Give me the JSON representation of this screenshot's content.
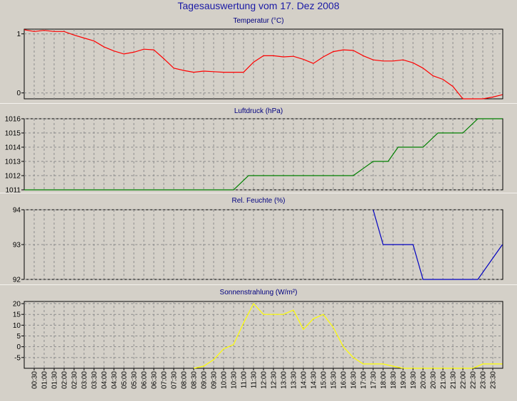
{
  "title": "Tagesauswertung vom 17. Dez 2008",
  "time_labels": [
    "00:30",
    "01:00",
    "01:30",
    "02:00",
    "02:30",
    "03:00",
    "03:30",
    "04:00",
    "04:30",
    "05:00",
    "05:30",
    "06:00",
    "06:30",
    "07:00",
    "07:30",
    "08:00",
    "08:30",
    "09:00",
    "09:30",
    "10:00",
    "10:30",
    "11:00",
    "11:30",
    "12:00",
    "12:30",
    "13:00",
    "13:30",
    "14:00",
    "14:30",
    "15:00",
    "15:30",
    "16:00",
    "16:30",
    "17:00",
    "17:30",
    "18:00",
    "18:30",
    "19:00",
    "19:30",
    "20:00",
    "20:30",
    "21:00",
    "21:30",
    "22:00",
    "22:30",
    "23:00",
    "23:30"
  ],
  "colors": {
    "background": "#d4d0c8",
    "title": "#1a1aa6",
    "panel_title": "#000080",
    "grid": "#8c8c8c"
  },
  "chart_data": [
    {
      "type": "line",
      "title": "Temperatur (°C)",
      "color": "#ff0000",
      "ylim": [
        -0.1,
        1.08
      ],
      "yticks": [
        0,
        1
      ],
      "ytick_labels": [
        "0",
        "1"
      ],
      "grid": true,
      "points": [
        [
          "00:00",
          1.07
        ],
        [
          "00:30",
          1.04
        ],
        [
          "01:00",
          1.06
        ],
        [
          "01:30",
          1.04
        ],
        [
          "02:00",
          1.04
        ],
        [
          "02:30",
          0.98
        ],
        [
          "03:00",
          0.93
        ],
        [
          "03:30",
          0.88
        ],
        [
          "04:00",
          0.78
        ],
        [
          "04:30",
          0.71
        ],
        [
          "05:00",
          0.66
        ],
        [
          "05:30",
          0.69
        ],
        [
          "06:00",
          0.74
        ],
        [
          "06:30",
          0.73
        ],
        [
          "07:00",
          0.58
        ],
        [
          "07:30",
          0.42
        ],
        [
          "08:00",
          0.38
        ],
        [
          "08:30",
          0.35
        ],
        [
          "09:00",
          0.37
        ],
        [
          "09:30",
          0.36
        ],
        [
          "10:00",
          0.35
        ],
        [
          "10:30",
          0.35
        ],
        [
          "11:00",
          0.35
        ],
        [
          "11:30",
          0.52
        ],
        [
          "12:00",
          0.63
        ],
        [
          "12:30",
          0.63
        ],
        [
          "13:00",
          0.61
        ],
        [
          "13:30",
          0.62
        ],
        [
          "14:00",
          0.57
        ],
        [
          "14:30",
          0.5
        ],
        [
          "15:00",
          0.61
        ],
        [
          "15:30",
          0.7
        ],
        [
          "16:00",
          0.73
        ],
        [
          "16:30",
          0.72
        ],
        [
          "17:00",
          0.63
        ],
        [
          "17:30",
          0.56
        ],
        [
          "18:00",
          0.54
        ],
        [
          "18:30",
          0.54
        ],
        [
          "19:00",
          0.56
        ],
        [
          "19:30",
          0.51
        ],
        [
          "20:00",
          0.42
        ],
        [
          "20:30",
          0.29
        ],
        [
          "21:00",
          0.23
        ],
        [
          "21:30",
          0.11
        ],
        [
          "22:00",
          -0.1
        ],
        [
          "22:30",
          -0.1
        ],
        [
          "23:00",
          -0.1
        ],
        [
          "23:30",
          -0.07
        ],
        [
          "23:59",
          -0.03
        ]
      ]
    },
    {
      "type": "line",
      "title": "Luftdruck (hPa)",
      "color": "#008000",
      "ylim": [
        1011,
        1016
      ],
      "yticks": [
        1011,
        1012,
        1013,
        1014,
        1015,
        1016
      ],
      "ytick_labels": [
        "1011",
        "1012",
        "1013",
        "1014",
        "1015",
        "1016"
      ],
      "grid": true,
      "points": [
        [
          "00:00",
          1011
        ],
        [
          "10:30",
          1011
        ],
        [
          "11:15",
          1012
        ],
        [
          "16:30",
          1012
        ],
        [
          "17:30",
          1013
        ],
        [
          "18:15",
          1013
        ],
        [
          "18:45",
          1014
        ],
        [
          "20:00",
          1014
        ],
        [
          "20:45",
          1015
        ],
        [
          "22:00",
          1015
        ],
        [
          "22:45",
          1016
        ],
        [
          "23:59",
          1016
        ]
      ]
    },
    {
      "type": "line",
      "title": "Rel. Feuchte (%)",
      "color": "#0000c0",
      "ylim": [
        92,
        94
      ],
      "yticks": [
        92,
        93,
        94
      ],
      "ytick_labels": [
        "92",
        "93",
        "94"
      ],
      "grid": true,
      "points": [
        [
          "17:30",
          94
        ],
        [
          "18:00",
          93
        ],
        [
          "19:30",
          93
        ],
        [
          "20:00",
          92
        ],
        [
          "22:45",
          92
        ],
        [
          "23:59",
          93
        ]
      ]
    },
    {
      "type": "line",
      "title": "Sonnenstrahlung (W/m²)",
      "color": "#ffff00",
      "ylim": [
        -10,
        21
      ],
      "yticks": [
        -5,
        0,
        5,
        10,
        15,
        20
      ],
      "ytick_labels": [
        "-5",
        "0",
        "5",
        "10",
        "15",
        "20"
      ],
      "grid": true,
      "points": [
        [
          "08:30",
          -10
        ],
        [
          "09:00",
          -9
        ],
        [
          "09:30",
          -6
        ],
        [
          "10:00",
          -1
        ],
        [
          "10:30",
          1
        ],
        [
          "11:00",
          11
        ],
        [
          "11:30",
          20
        ],
        [
          "12:00",
          15
        ],
        [
          "12:30",
          15
        ],
        [
          "13:00",
          15
        ],
        [
          "13:30",
          17
        ],
        [
          "14:00",
          8
        ],
        [
          "14:30",
          13
        ],
        [
          "15:00",
          15
        ],
        [
          "15:30",
          9
        ],
        [
          "16:00",
          0
        ],
        [
          "16:30",
          -5
        ],
        [
          "17:00",
          -8
        ],
        [
          "17:30",
          -8
        ],
        [
          "18:00",
          -8
        ],
        [
          "18:30",
          -9
        ],
        [
          "19:00",
          -10
        ],
        [
          "22:30",
          -10
        ],
        [
          "23:00",
          -8
        ],
        [
          "23:30",
          -8
        ],
        [
          "23:59",
          -8
        ]
      ]
    }
  ]
}
